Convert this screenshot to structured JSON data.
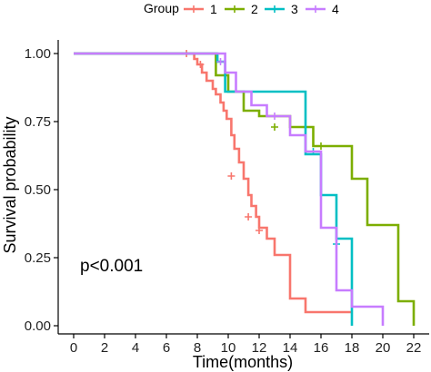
{
  "chart_data": {
    "type": "line",
    "xlabel": "Time(months)",
    "ylabel": "Survival probability",
    "xlim": [
      -1,
      23
    ],
    "ylim": [
      -0.03,
      1.05
    ],
    "x_ticks": [
      0,
      2,
      4,
      6,
      8,
      10,
      12,
      14,
      16,
      18,
      20,
      22
    ],
    "y_ticks": [
      0.0,
      0.25,
      0.5,
      0.75,
      1.0
    ],
    "y_tick_labels": [
      "0.00",
      "0.25",
      "0.50",
      "0.75",
      "1.00"
    ],
    "legend": {
      "title": "Group",
      "position": "top"
    },
    "annotation": "p<0.001",
    "series": [
      {
        "name": "1",
        "color": "#F8766D",
        "x": [
          0,
          7.6,
          7.8,
          8.0,
          8.3,
          8.6,
          9.0,
          9.2,
          9.5,
          9.7,
          9.9,
          10.2,
          10.4,
          10.7,
          11.0,
          11.3,
          11.5,
          11.8,
          12.0,
          12.5,
          13.0,
          14.0,
          15.0,
          17.0,
          18.0
        ],
        "y": [
          1.0,
          1.0,
          0.98,
          0.96,
          0.93,
          0.9,
          0.87,
          0.85,
          0.82,
          0.79,
          0.76,
          0.7,
          0.65,
          0.6,
          0.54,
          0.48,
          0.44,
          0.4,
          0.36,
          0.32,
          0.26,
          0.1,
          0.05,
          0.05,
          0.05
        ],
        "censored": [
          [
            7.3,
            1.0
          ],
          [
            8.2,
            0.96
          ],
          [
            10.2,
            0.55
          ],
          [
            11.3,
            0.4
          ],
          [
            12.0,
            0.35
          ]
        ]
      },
      {
        "name": "2",
        "color": "#7CAE00",
        "x": [
          0,
          8.9,
          9.2,
          10.0,
          11.0,
          12.0,
          14.0,
          15.5,
          17.0,
          18.0,
          19.0,
          21.0,
          22.0
        ],
        "y": [
          1.0,
          1.0,
          0.92,
          0.86,
          0.79,
          0.77,
          0.73,
          0.66,
          0.66,
          0.54,
          0.37,
          0.09,
          0.0
        ],
        "censored": [
          [
            13.0,
            0.73
          ],
          [
            16.0,
            0.66
          ]
        ]
      },
      {
        "name": "3",
        "color": "#00BFC4",
        "x": [
          0,
          9.0,
          9.3,
          9.8,
          11.0,
          14.0,
          15.0,
          16.0,
          17.0,
          18.0
        ],
        "y": [
          1.0,
          1.0,
          0.97,
          0.86,
          0.86,
          0.86,
          0.63,
          0.48,
          0.32,
          0.0
        ],
        "censored": [
          [
            15.5,
            0.64
          ],
          [
            17.0,
            0.3
          ]
        ]
      },
      {
        "name": "4",
        "color": "#C77CFF",
        "x": [
          0,
          9.5,
          9.8,
          10.5,
          11.5,
          12.5,
          14.0,
          15.0,
          16.0,
          17.0,
          18.0,
          20.0
        ],
        "y": [
          1.0,
          1.0,
          0.93,
          0.86,
          0.81,
          0.77,
          0.7,
          0.64,
          0.36,
          0.13,
          0.07,
          0.0
        ],
        "censored": [
          [
            9.5,
            0.97
          ],
          [
            13.0,
            0.77
          ]
        ]
      }
    ]
  }
}
